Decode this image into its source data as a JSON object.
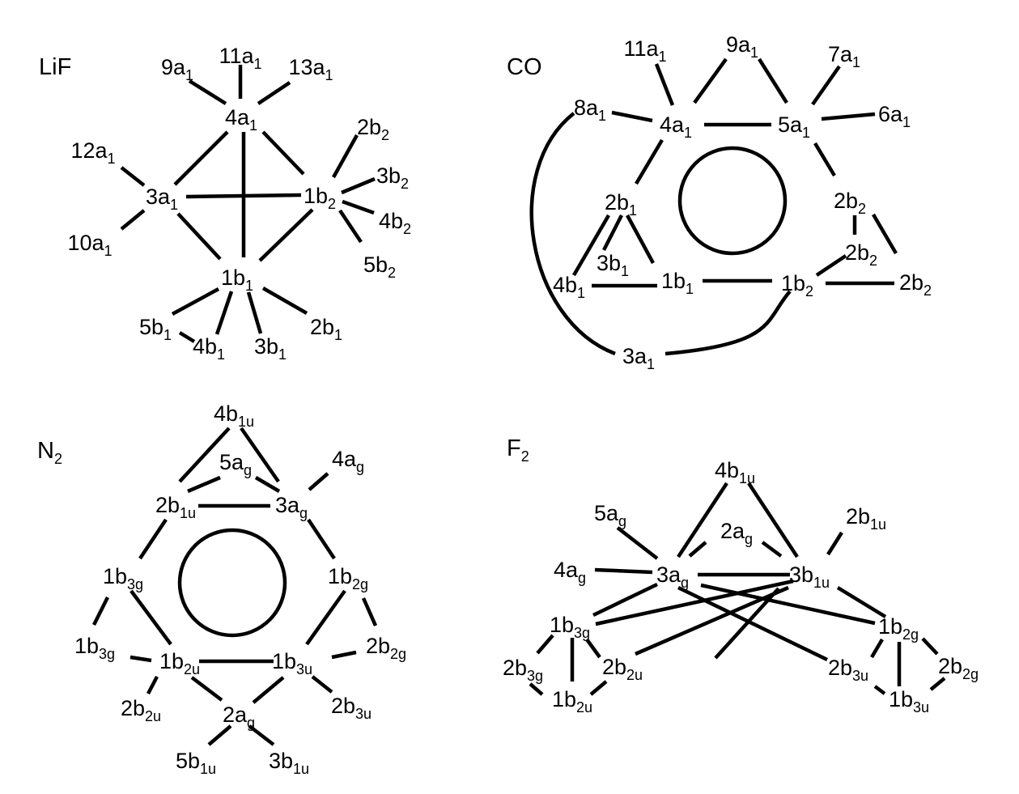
{
  "panels": [
    {
      "id": "lif",
      "title": "LiF",
      "nodes": [
        {
          "id": "4a1",
          "main": "4a",
          "sub": "1"
        },
        {
          "id": "9a1",
          "main": "9a",
          "sub": "1"
        },
        {
          "id": "11a1",
          "main": "11a",
          "sub": "1"
        },
        {
          "id": "13a1",
          "main": "13a",
          "sub": "1"
        },
        {
          "id": "12a1",
          "main": "12a",
          "sub": "1"
        },
        {
          "id": "3a1",
          "main": "3a",
          "sub": "1"
        },
        {
          "id": "10a1",
          "main": "10a",
          "sub": "1"
        },
        {
          "id": "1b2",
          "main": "1b",
          "sub": "2"
        },
        {
          "id": "2b2",
          "main": "2b",
          "sub": "2"
        },
        {
          "id": "3b2",
          "main": "3b",
          "sub": "2"
        },
        {
          "id": "4b2",
          "main": "4b",
          "sub": "2"
        },
        {
          "id": "5b2",
          "main": "5b",
          "sub": "2"
        },
        {
          "id": "1b1",
          "main": "1b",
          "sub": "1"
        },
        {
          "id": "5b1",
          "main": "5b",
          "sub": "1"
        },
        {
          "id": "4b1",
          "main": "4b",
          "sub": "1"
        },
        {
          "id": "3b1",
          "main": "3b",
          "sub": "1"
        },
        {
          "id": "2b1",
          "main": "2b",
          "sub": "1"
        }
      ]
    },
    {
      "id": "co",
      "title": "CO",
      "nodes": [
        {
          "id": "11a1",
          "main": "11a",
          "sub": "1"
        },
        {
          "id": "9a1",
          "main": "9a",
          "sub": "1"
        },
        {
          "id": "7a1",
          "main": "7a",
          "sub": "1"
        },
        {
          "id": "8a1",
          "main": "8a",
          "sub": "1"
        },
        {
          "id": "4a1",
          "main": "4a",
          "sub": "1"
        },
        {
          "id": "5a1",
          "main": "5a",
          "sub": "1"
        },
        {
          "id": "6a1",
          "main": "6a",
          "sub": "1"
        },
        {
          "id": "2b1",
          "main": "2b",
          "sub": "1"
        },
        {
          "id": "3b1",
          "main": "3b",
          "sub": "1"
        },
        {
          "id": "4b1",
          "main": "4b",
          "sub": "1"
        },
        {
          "id": "1b1",
          "main": "1b",
          "sub": "1"
        },
        {
          "id": "2b2a",
          "main": "2b",
          "sub": "2"
        },
        {
          "id": "2b2b",
          "main": "2b",
          "sub": "2"
        },
        {
          "id": "1b2",
          "main": "1b",
          "sub": "2"
        },
        {
          "id": "2b2c",
          "main": "2b",
          "sub": "2"
        },
        {
          "id": "3a1",
          "main": "3a",
          "sub": "1"
        }
      ]
    },
    {
      "id": "n2",
      "title": "N",
      "title_sub": "2",
      "nodes": [
        {
          "id": "4b1u",
          "main": "4b",
          "sub": "1u"
        },
        {
          "id": "5ag",
          "main": "5a",
          "sub": "g"
        },
        {
          "id": "4ag",
          "main": "4a",
          "sub": "g"
        },
        {
          "id": "2b1u",
          "main": "2b",
          "sub": "1u"
        },
        {
          "id": "3ag",
          "main": "3a",
          "sub": "g"
        },
        {
          "id": "1b3g",
          "main": "1b",
          "sub": "3g"
        },
        {
          "id": "1b2g",
          "main": "1b",
          "sub": "2g"
        },
        {
          "id": "1b3g_b",
          "main": "1b",
          "sub": "3g"
        },
        {
          "id": "1b2u",
          "main": "1b",
          "sub": "2u"
        },
        {
          "id": "1b3u",
          "main": "1b",
          "sub": "3u"
        },
        {
          "id": "2b2g",
          "main": "2b",
          "sub": "2g"
        },
        {
          "id": "2b2u",
          "main": "2b",
          "sub": "2u"
        },
        {
          "id": "2ag",
          "main": "2a",
          "sub": "g"
        },
        {
          "id": "2b3u",
          "main": "2b",
          "sub": "3u"
        },
        {
          "id": "5b1u",
          "main": "5b",
          "sub": "1u"
        },
        {
          "id": "3b1u",
          "main": "3b",
          "sub": "1u"
        }
      ]
    },
    {
      "id": "f2",
      "title": "F",
      "title_sub": "2",
      "nodes": [
        {
          "id": "4b1u",
          "main": "4b",
          "sub": "1u"
        },
        {
          "id": "5ag",
          "main": "5a",
          "sub": "g"
        },
        {
          "id": "2b1u",
          "main": "2b",
          "sub": "1u"
        },
        {
          "id": "2ag",
          "main": "2a",
          "sub": "g"
        },
        {
          "id": "4ag",
          "main": "4a",
          "sub": "g"
        },
        {
          "id": "3ag",
          "main": "3a",
          "sub": "g"
        },
        {
          "id": "3b1u",
          "main": "3b",
          "sub": "1u"
        },
        {
          "id": "1b3g",
          "main": "1b",
          "sub": "3g"
        },
        {
          "id": "1b2g",
          "main": "1b",
          "sub": "2g"
        },
        {
          "id": "2b3g",
          "main": "2b",
          "sub": "3g"
        },
        {
          "id": "2b2u",
          "main": "2b",
          "sub": "2u"
        },
        {
          "id": "2b3u",
          "main": "2b",
          "sub": "3u"
        },
        {
          "id": "2b2g",
          "main": "2b",
          "sub": "2g"
        },
        {
          "id": "1b2u",
          "main": "1b",
          "sub": "2u"
        },
        {
          "id": "1b3u",
          "main": "1b",
          "sub": "3u"
        }
      ]
    }
  ]
}
